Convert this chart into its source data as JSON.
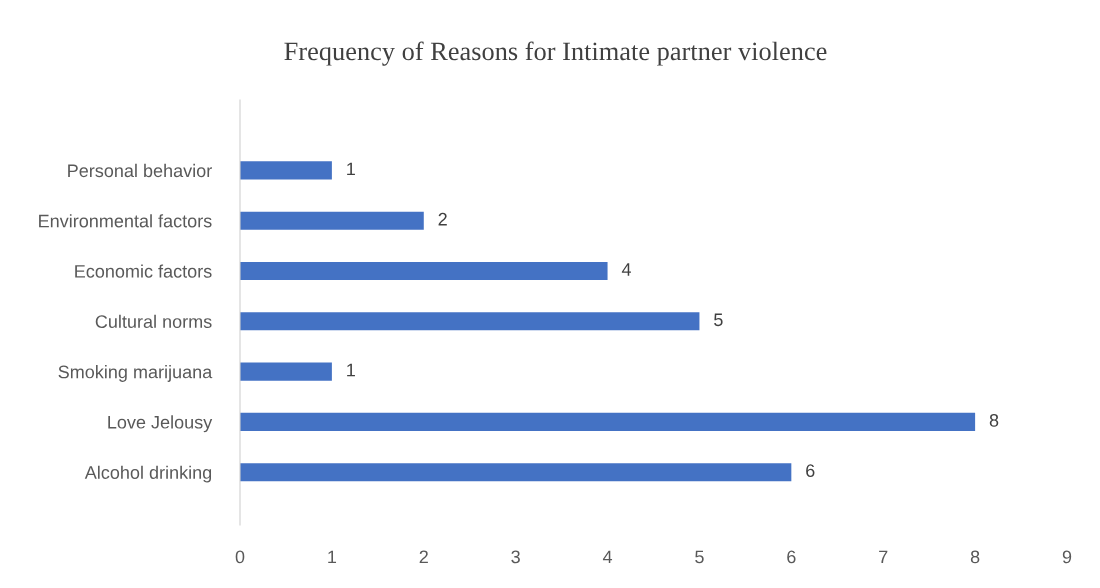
{
  "chart_data": {
    "type": "bar",
    "orientation": "horizontal",
    "title": "Frequency of Reasons for Intimate partner violence",
    "categories": [
      "Personal behavior",
      "Environmental factors",
      "Economic factors",
      "Cultural norms",
      "Smoking marijuana",
      "Love Jelousy",
      "Alcohol drinking"
    ],
    "values": [
      1,
      2,
      4,
      5,
      1,
      8,
      6
    ],
    "color": "#4472c4",
    "xlim": [
      0,
      9
    ],
    "xticks": [
      0,
      1,
      2,
      3,
      4,
      5,
      6,
      7,
      8,
      9
    ],
    "grid": false,
    "data_labels": true
  }
}
